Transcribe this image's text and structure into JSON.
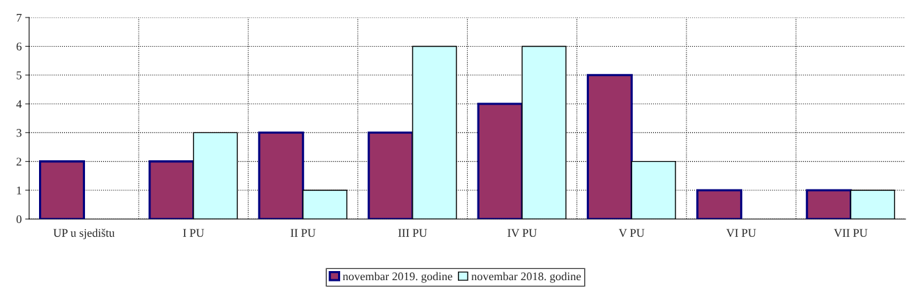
{
  "chart_data": {
    "type": "bar",
    "categories": [
      "UP u sjedištu",
      "I PU",
      "II PU",
      "III PU",
      "IV PU",
      "V PU",
      "VI PU",
      "VII PU"
    ],
    "series": [
      {
        "name": "novembar 2019. godine",
        "color": "#993366",
        "values": [
          2,
          2,
          3,
          3,
          4,
          5,
          1,
          1
        ]
      },
      {
        "name": "novembar 2018. godine",
        "color": "#ccffff",
        "values": [
          null,
          3,
          1,
          6,
          6,
          2,
          null,
          1
        ]
      }
    ],
    "ylim": [
      0,
      7
    ],
    "yticks": [
      0,
      1,
      2,
      3,
      4,
      5,
      6,
      7
    ],
    "grid": true,
    "legend": "bottom"
  }
}
